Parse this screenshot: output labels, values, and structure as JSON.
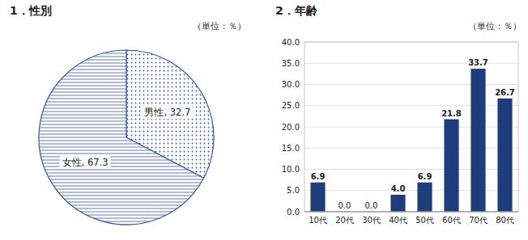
{
  "chart_data": [
    {
      "type": "pie",
      "title": "1．性別",
      "subtitle": "（単位：％）",
      "categories": [
        "男性",
        "女性"
      ],
      "values": [
        32.7,
        67.3
      ],
      "value_labels": [
        "男性, 32.7",
        "女性, 67.3"
      ],
      "data_labels": true,
      "color": "#3355aa"
    },
    {
      "type": "bar",
      "title": "2．年齢",
      "subtitle": "（単位：％）",
      "categories": [
        "10代",
        "20代",
        "30代",
        "40代",
        "50代",
        "60代",
        "70代",
        "80代"
      ],
      "values": [
        6.9,
        0.0,
        0.0,
        4.0,
        6.9,
        21.8,
        33.7,
        26.7
      ],
      "value_labels": [
        "6.9",
        "0.0",
        "0.0",
        "4.0",
        "6.9",
        "21.8",
        "33.7",
        "26.7"
      ],
      "data_labels": true,
      "color": "#1f3d7a",
      "ylim": [
        0,
        40.0
      ],
      "yticks": [
        {
          "value": 0.0,
          "label": "0.0"
        },
        {
          "value": 5.0,
          "label": "5.0"
        },
        {
          "value": 10.0,
          "label": "10.0"
        },
        {
          "value": 15.0,
          "label": "15.0"
        },
        {
          "value": 20.0,
          "label": "20.0"
        },
        {
          "value": 25.0,
          "label": "25.0"
        },
        {
          "value": 30.0,
          "label": "30.0"
        },
        {
          "value": 35.0,
          "label": "35.0"
        },
        {
          "value": 40.0,
          "label": "40.0"
        }
      ],
      "grid": true
    }
  ]
}
